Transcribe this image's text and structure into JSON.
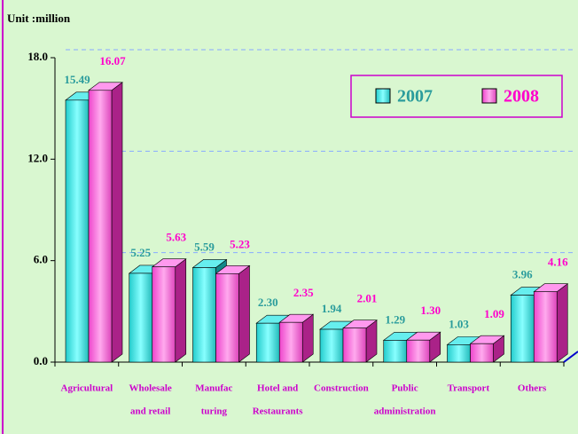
{
  "chart_data": {
    "type": "bar3d",
    "unit_label": "Unit :million",
    "categories": [
      [
        "Agricultural"
      ],
      [
        "Wholesale",
        "and retail"
      ],
      [
        "Manufac",
        "turing"
      ],
      [
        "Hotel and",
        "Restaurants"
      ],
      [
        "Construction"
      ],
      [
        "Public",
        "administration"
      ],
      [
        "Transport"
      ],
      [
        "Others"
      ]
    ],
    "series": [
      {
        "name": "2007",
        "color": "#33dddd",
        "label_color": "#2a9c9c",
        "values": [
          15.49,
          5.25,
          5.59,
          2.3,
          1.94,
          1.29,
          1.03,
          3.96
        ],
        "value_labels": [
          "15.49",
          "5.25",
          "5.59",
          "2.30",
          "1.94",
          "1.29",
          "1.03",
          "3.96"
        ]
      },
      {
        "name": "2008",
        "color": "#ff66dd",
        "label_color": "#ff00cc",
        "values": [
          16.07,
          5.63,
          5.23,
          2.35,
          2.01,
          1.3,
          1.09,
          4.16
        ],
        "value_labels": [
          "16.07",
          "5.63",
          "5.23",
          "2.35",
          "2.01",
          "1.30",
          "1.09",
          "4.16"
        ]
      }
    ],
    "ylim": [
      0,
      18
    ],
    "yticks": [
      {
        "value": 0,
        "label": "0.0"
      },
      {
        "value": 6,
        "label": "6.0"
      },
      {
        "value": 12,
        "label": "12.0"
      },
      {
        "value": 18,
        "label": "18.0"
      }
    ],
    "grid": true,
    "legend": "top-right"
  }
}
